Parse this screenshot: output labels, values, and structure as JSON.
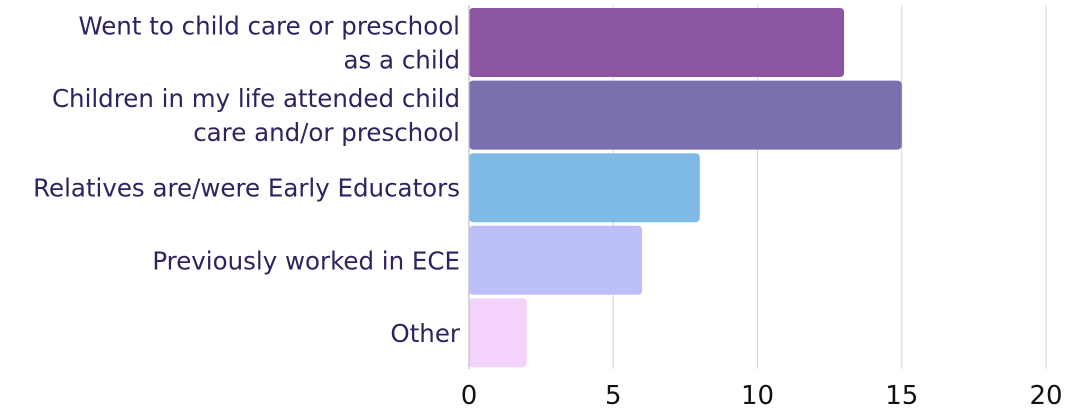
{
  "chart_data": {
    "type": "bar",
    "orientation": "horizontal",
    "categories": [
      [
        "Went to child care or preschool",
        "as a child"
      ],
      [
        "Children in my life attended child",
        "care and/or preschool"
      ],
      [
        "Relatives are/were Early Educators"
      ],
      [
        "Previously worked in ECE"
      ],
      [
        "Other"
      ]
    ],
    "values": [
      13,
      15,
      8,
      6,
      2
    ],
    "colors": [
      "#8a56a3",
      "#7a6faf",
      "#7fb9e6",
      "#bcbff8",
      "#f3d2fb"
    ],
    "xlim": [
      0,
      20
    ],
    "xticks": [
      "0",
      "5",
      "10",
      "15",
      "20"
    ],
    "grid": true,
    "title": "",
    "xlabel": "",
    "ylabel": ""
  }
}
